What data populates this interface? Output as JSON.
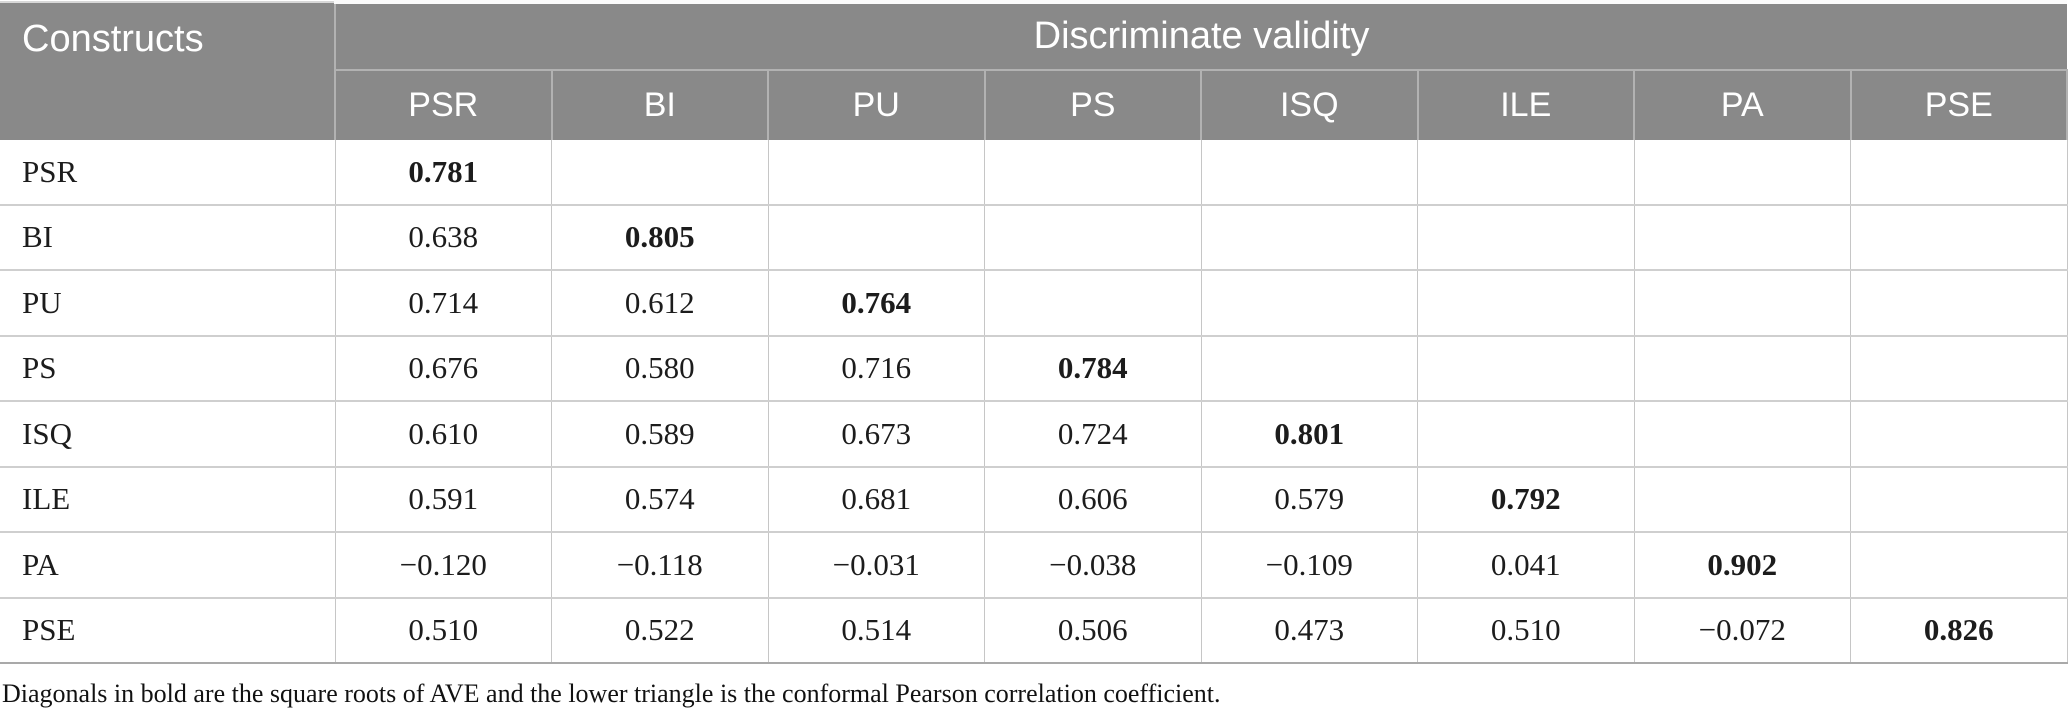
{
  "table": {
    "corner_header": "Constructs",
    "group_header": "Discriminate validity",
    "columns": [
      "PSR",
      "BI",
      "PU",
      "PS",
      "ISQ",
      "ILE",
      "PA",
      "PSE"
    ],
    "rows": [
      {
        "label": "PSR",
        "bold_index": 0,
        "values": [
          "0.781",
          "",
          "",
          "",
          "",
          "",
          "",
          ""
        ]
      },
      {
        "label": "BI",
        "bold_index": 1,
        "values": [
          "0.638",
          "0.805",
          "",
          "",
          "",
          "",
          "",
          ""
        ]
      },
      {
        "label": "PU",
        "bold_index": 2,
        "values": [
          "0.714",
          "0.612",
          "0.764",
          "",
          "",
          "",
          "",
          ""
        ]
      },
      {
        "label": "PS",
        "bold_index": 3,
        "values": [
          "0.676",
          "0.580",
          "0.716",
          "0.784",
          "",
          "",
          "",
          ""
        ]
      },
      {
        "label": "ISQ",
        "bold_index": 4,
        "values": [
          "0.610",
          "0.589",
          "0.673",
          "0.724",
          "0.801",
          "",
          "",
          ""
        ]
      },
      {
        "label": "ILE",
        "bold_index": 5,
        "values": [
          "0.591",
          "0.574",
          "0.681",
          "0.606",
          "0.579",
          "0.792",
          "",
          ""
        ]
      },
      {
        "label": "PA",
        "bold_index": 6,
        "values": [
          "−0.120",
          "−0.118",
          "−0.031",
          "−0.038",
          "−0.109",
          "0.041",
          "0.902",
          ""
        ]
      },
      {
        "label": "PSE",
        "bold_index": 7,
        "values": [
          "0.510",
          "0.522",
          "0.514",
          "0.506",
          "0.473",
          "0.510",
          "−0.072",
          "0.826"
        ]
      }
    ],
    "footnote": "Diagonals in bold are the square roots of AVE and the lower triangle is the conformal Pearson correlation coefficient."
  },
  "colors": {
    "header_bg": "#898989",
    "header_text": "#ffffff",
    "header_border": "#b2b2b2",
    "body_border": "#c6c6c6",
    "row_divider": "#cfcfcf",
    "bottom_border": "#a9a9a9",
    "body_text": "#1c1c1c"
  }
}
